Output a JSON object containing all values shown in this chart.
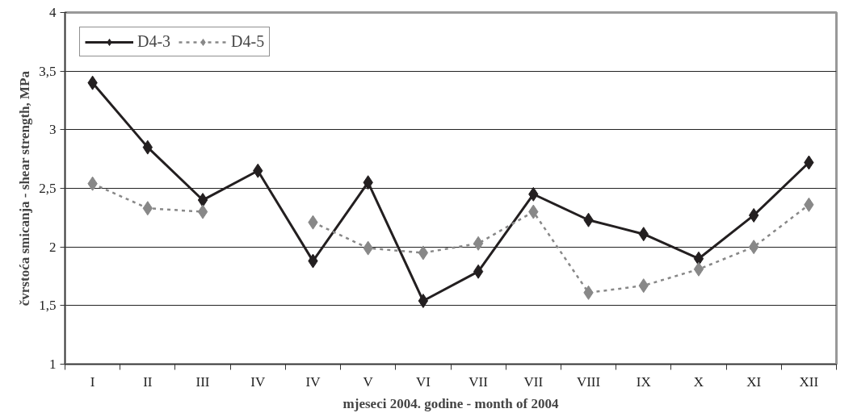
{
  "chart_data": {
    "type": "line",
    "xlabel": "mjeseci 2004. godine - month of 2004",
    "ylabel": "čvrstoća smicanja - shear strength, MPa",
    "categories": [
      "I",
      "II",
      "III",
      "IV",
      "IV",
      "V",
      "VI",
      "VII",
      "VII",
      "VIII",
      "IX",
      "X",
      "XI",
      "XII"
    ],
    "series": [
      {
        "name": "D4-3",
        "color": "#231f20",
        "line_style": "solid",
        "values": [
          3.4,
          2.85,
          2.4,
          2.65,
          1.88,
          2.55,
          1.54,
          1.79,
          2.45,
          2.23,
          2.11,
          1.9,
          2.27,
          2.72
        ]
      },
      {
        "name": "D4-5",
        "color": "#888888",
        "line_style": "dotted",
        "values": [
          2.54,
          2.33,
          2.3,
          null,
          2.21,
          1.99,
          1.95,
          2.03,
          2.3,
          1.61,
          1.67,
          1.81,
          2.0,
          2.36
        ]
      }
    ],
    "ylim": [
      1,
      4
    ],
    "yticks": [
      1,
      {
        "value": 1.5,
        "label": "1,5"
      },
      2,
      {
        "value": 2.5,
        "label": "2,5"
      },
      3,
      {
        "value": 3.5,
        "label": "3,5"
      },
      4
    ],
    "grid": "y",
    "legend": "top left",
    "marker": "diamond"
  }
}
